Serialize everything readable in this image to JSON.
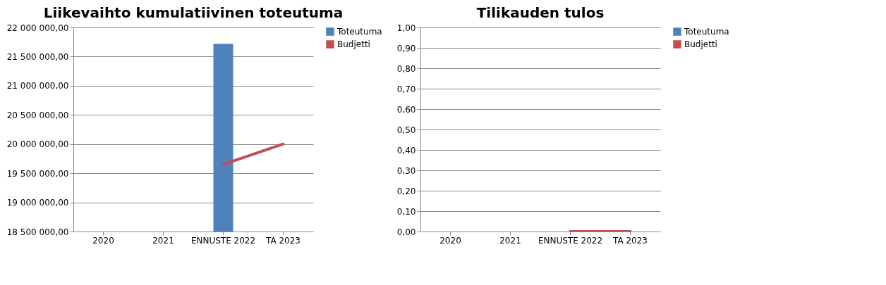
{
  "chart_data": [
    {
      "type": "bar",
      "title": "Liikevaihto kumulatiivinen toteutuma",
      "categories": [
        "2020",
        "2021",
        "ENNUSTE 2022",
        "TA 2023"
      ],
      "series": [
        {
          "name": "Toteutuma",
          "color": "#4f81bd",
          "values": [
            null,
            null,
            21720000,
            null
          ]
        },
        {
          "name": "Budjetti",
          "type": "line",
          "color": "#c0504d",
          "values": [
            null,
            null,
            19650000,
            20000000
          ]
        }
      ],
      "ylim": [
        18500000,
        22000000
      ],
      "yticks": [
        {
          "value": 18500000,
          "label": "18 500 000,00"
        },
        {
          "value": 19000000,
          "label": "19 000 000,00"
        },
        {
          "value": 19500000,
          "label": "19 500 000,00"
        },
        {
          "value": 20000000,
          "label": "20 000 000,00"
        },
        {
          "value": 20500000,
          "label": "20 500 000,00"
        },
        {
          "value": 21000000,
          "label": "21 000 000,00"
        },
        {
          "value": 21500000,
          "label": "21 500 000,00"
        },
        {
          "value": 22000000,
          "label": "22 000 000,00"
        }
      ],
      "grid": "y",
      "legend": "right"
    },
    {
      "type": "bar",
      "title": "Tilikauden tulos",
      "categories": [
        "2020",
        "2021",
        "ENNUSTE 2022",
        "TA 2023"
      ],
      "series": [
        {
          "name": "Toteutuma",
          "color": "#4f81bd",
          "values": [
            null,
            null,
            null,
            null
          ]
        },
        {
          "name": "Budjetti",
          "type": "line",
          "color": "#c0504d",
          "values": [
            null,
            null,
            0,
            0
          ]
        }
      ],
      "ylim": [
        0,
        1
      ],
      "yticks": [
        {
          "value": 0,
          "label": "0,00"
        },
        {
          "value": 0.1,
          "label": "0,10"
        },
        {
          "value": 0.2,
          "label": "0,20"
        },
        {
          "value": 0.3,
          "label": "0,30"
        },
        {
          "value": 0.4,
          "label": "0,40"
        },
        {
          "value": 0.5,
          "label": "0,50"
        },
        {
          "value": 0.6,
          "label": "0,60"
        },
        {
          "value": 0.7,
          "label": "0,70"
        },
        {
          "value": 0.8,
          "label": "0,80"
        },
        {
          "value": 0.9,
          "label": "0,90"
        },
        {
          "value": 1,
          "label": "1,00"
        }
      ],
      "grid": "y",
      "legend": "right"
    }
  ]
}
